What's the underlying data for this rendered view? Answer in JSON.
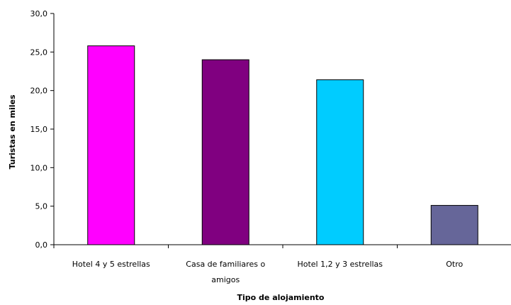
{
  "chart_data": {
    "type": "bar",
    "title": "",
    "xlabel": "Tipo de alojamiento",
    "ylabel": "Turistas en miles",
    "ylim": [
      0,
      30
    ],
    "yticks": [
      "0,0",
      "5,0",
      "10,0",
      "15,0",
      "20,0",
      "25,0",
      "30,0"
    ],
    "grid": false,
    "legend": "none",
    "categories": [
      [
        "Hotel 4 y 5 estrellas"
      ],
      [
        "Casa de familiares o",
        "amigos"
      ],
      [
        "Hotel 1,2 y 3 estrellas"
      ],
      [
        "Otro"
      ]
    ],
    "values": [
      25.8,
      24.0,
      21.4,
      5.1
    ],
    "colors": [
      "#ff00ff",
      "#800080",
      "#00ccff",
      "#666699"
    ]
  }
}
